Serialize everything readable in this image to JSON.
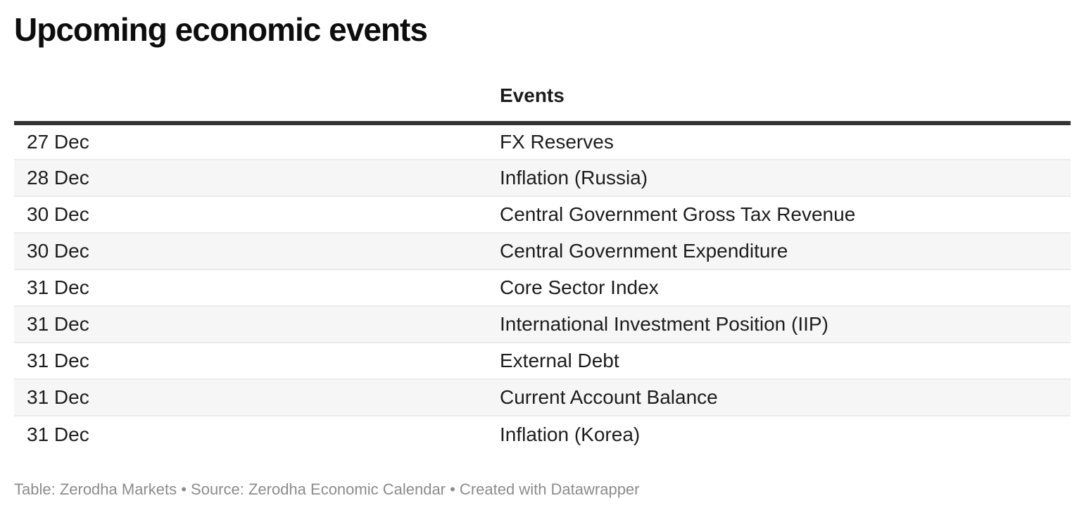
{
  "chart_data": {
    "type": "table",
    "title": "Upcoming economic events",
    "columns": {
      "date": "",
      "event": "Events"
    },
    "rows": [
      {
        "date": "27 Dec",
        "event": "FX Reserves"
      },
      {
        "date": "28 Dec",
        "event": "Inflation (Russia)"
      },
      {
        "date": "30 Dec",
        "event": "Central Government Gross Tax Revenue"
      },
      {
        "date": "30 Dec",
        "event": "Central Government Expenditure"
      },
      {
        "date": "31 Dec",
        "event": "Core Sector Index"
      },
      {
        "date": "31 Dec",
        "event": "International Investment Position (IIP)"
      },
      {
        "date": "31 Dec",
        "event": "External Debt"
      },
      {
        "date": "31 Dec",
        "event": "Current Account Balance"
      },
      {
        "date": "31 Dec",
        "event": "Inflation (Korea)"
      }
    ],
    "footer": "Table: Zerodha Markets • Source: Zerodha Economic Calendar • Created with Datawrapper",
    "layout": {
      "zebra_striping": true,
      "header_rule": true,
      "legend": "none",
      "grid": "row-borders"
    }
  },
  "colors": {
    "background": "#ffffff",
    "title": "#0d0d0d",
    "text": "#1d1d1d",
    "header_rule": "#333333",
    "row_alt_bg": "#f6f6f6",
    "row_border": "#ebebeb",
    "footer_text": "#8c8c8c"
  }
}
